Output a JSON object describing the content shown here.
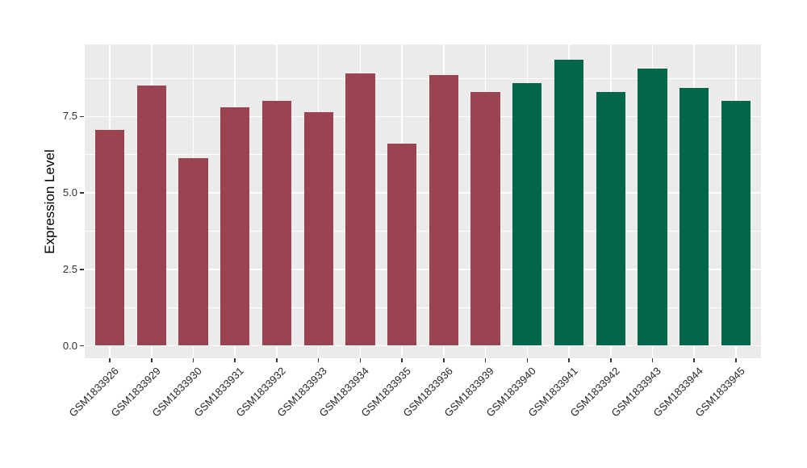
{
  "chart_data": {
    "type": "bar",
    "title": "",
    "xlabel": "",
    "ylabel": "Expression Level",
    "categories": [
      "GSM1833926",
      "GSM1833929",
      "GSM1833930",
      "GSM1833931",
      "GSM1833932",
      "GSM1833933",
      "GSM1833934",
      "GSM1833935",
      "GSM1833936",
      "GSM1833939",
      "GSM1833940",
      "GSM1833941",
      "GSM1833942",
      "GSM1833943",
      "GSM1833944",
      "GSM1833945"
    ],
    "values": [
      7.07,
      8.51,
      6.13,
      7.8,
      8.01,
      7.64,
      8.9,
      6.61,
      8.86,
      8.29,
      8.59,
      9.35,
      8.29,
      9.06,
      8.42,
      8.0
    ],
    "bar_colors": [
      "#9B4451",
      "#9B4451",
      "#9B4451",
      "#9B4451",
      "#9B4451",
      "#9B4451",
      "#9B4451",
      "#9B4451",
      "#9B4451",
      "#9B4451",
      "#02664A",
      "#02664A",
      "#02664A",
      "#02664A",
      "#02664A",
      "#02664A"
    ],
    "y_tick_labels": [
      "0.0",
      "2.5",
      "5.0",
      "7.5"
    ],
    "y_tick_values": [
      0.0,
      2.5,
      5.0,
      7.5
    ],
    "y_minor_tick_values": [
      1.25,
      3.75,
      6.25,
      8.75
    ],
    "ylim": [
      -0.41,
      9.86
    ],
    "grid": "major-and-minor-horizontal, major-vertical, white on grey panel",
    "legend_position": "none",
    "colors": {
      "group1_bar": "#9B4451",
      "group2_bar": "#02664A",
      "panel_background": "#EBEBEB",
      "grid_line": "#FFFFFF",
      "tick_text": "#262626",
      "axis_title_text": "#000000"
    }
  }
}
